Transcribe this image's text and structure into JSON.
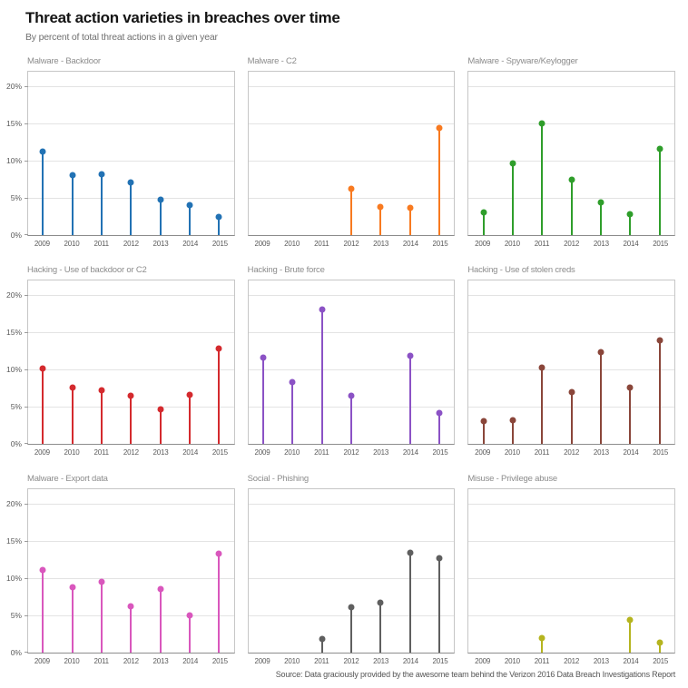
{
  "header": {
    "title": "Threat action varieties in breaches over time",
    "subtitle": "By percent of total threat actions in a given year"
  },
  "footer": {
    "source": "Source: Data graciously provided by the awesome team behind the Verizon 2016 Data Breach Investigations Report"
  },
  "chart_data": {
    "type": "lollipop-small-multiples",
    "categories": [
      "2009",
      "2010",
      "2011",
      "2012",
      "2013",
      "2014",
      "2015"
    ],
    "y_axis": {
      "tick_values": [
        0,
        5,
        10,
        15,
        20
      ],
      "tick_labels": [
        "0%",
        "5%",
        "10%",
        "15%",
        "20%"
      ],
      "ymax": 22,
      "unit": "percent"
    },
    "grid": "horizontal-on",
    "legend": "none",
    "panels": [
      {
        "id": "malware-backdoor",
        "title": "Malware - Backdoor",
        "color": "#2272b4",
        "values": [
          11.2,
          8.1,
          8.2,
          7.1,
          4.8,
          4.0,
          2.5
        ]
      },
      {
        "id": "malware-c2",
        "title": "Malware - C2",
        "color": "#f87a20",
        "values": [
          null,
          null,
          null,
          6.2,
          3.8,
          3.7,
          14.4
        ]
      },
      {
        "id": "malware-spyware-keylogger",
        "title": "Malware - Spyware/Keylogger",
        "color": "#2f9e2b",
        "values": [
          3.1,
          9.7,
          15.0,
          7.4,
          4.4,
          2.8,
          11.6
        ]
      },
      {
        "id": "hacking-use-of-backdoor-or-c2",
        "title": "Hacking - Use of backdoor or C2",
        "color": "#d42a2e",
        "values": [
          10.1,
          7.6,
          7.2,
          6.5,
          4.7,
          6.6,
          12.8
        ]
      },
      {
        "id": "hacking-brute-force",
        "title": "Hacking - Brute force",
        "color": "#8b52c5",
        "values": [
          11.6,
          8.3,
          18.1,
          6.5,
          null,
          11.9,
          4.1
        ]
      },
      {
        "id": "hacking-use-of-stolen-creds",
        "title": "Hacking - Use of stolen creds",
        "color": "#8a463a",
        "values": [
          3.0,
          3.2,
          10.3,
          7.0,
          12.3,
          7.6,
          13.9
        ]
      },
      {
        "id": "malware-export-data",
        "title": "Malware - Export data",
        "color": "#d957bd",
        "values": [
          11.1,
          8.8,
          9.5,
          6.2,
          8.6,
          5.0,
          13.3
        ]
      },
      {
        "id": "social-phishing",
        "title": "Social - Phishing",
        "color": "#5f5f5f",
        "values": [
          null,
          null,
          1.8,
          6.1,
          6.7,
          13.4,
          12.7
        ]
      },
      {
        "id": "misuse-privilege-abuse",
        "title": "Misuse - Privilege abuse",
        "color": "#b5b41f",
        "values": [
          null,
          null,
          1.9,
          null,
          null,
          4.4,
          1.3
        ]
      }
    ]
  }
}
